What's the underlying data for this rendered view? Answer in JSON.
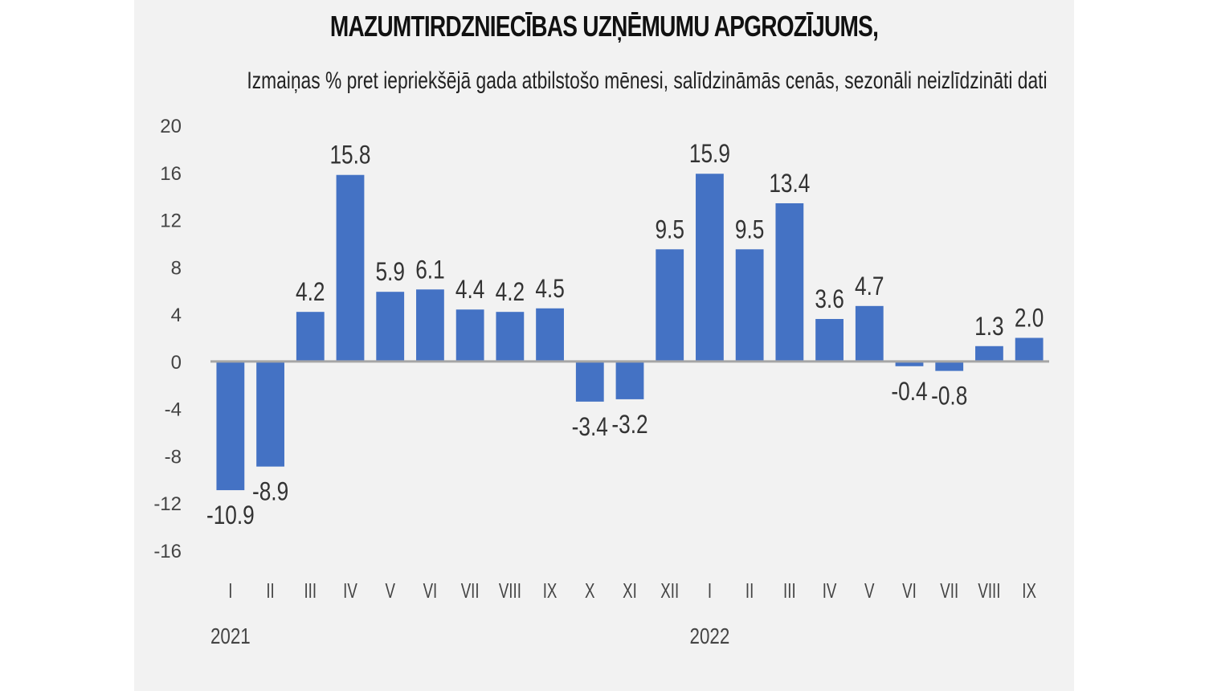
{
  "chart_data": {
    "type": "bar",
    "title": "MAZUMTIRDZNIECĪBAS UZŅĒMUMU APGROZĪJUMS,",
    "subtitle": "Izmaiņas % pret iepriekšējā gada atbilstošo mēnesi, salīdzināmās cenās, sezonāli neizlīdzināti dati",
    "categories": [
      "I",
      "II",
      "III",
      "IV",
      "V",
      "VI",
      "VII",
      "VIII",
      "IX",
      "X",
      "XI",
      "XII",
      "I",
      "II",
      "III",
      "IV",
      "V",
      "VI",
      "VII",
      "VIII",
      "IX"
    ],
    "values": [
      -10.9,
      -8.9,
      4.2,
      15.8,
      5.9,
      6.1,
      4.4,
      4.2,
      4.5,
      -3.4,
      -3.2,
      9.5,
      15.9,
      9.5,
      13.4,
      3.6,
      4.7,
      -0.4,
      -0.8,
      1.3,
      2.0
    ],
    "data_labels": [
      "-10.9",
      "-8.9",
      "4.2",
      "15.8",
      "5.9",
      "6.1",
      "4.4",
      "4.2",
      "4.5",
      "-3.4",
      "-3.2",
      "9.5",
      "15.9",
      "9.5",
      "13.4",
      "3.6",
      "4.7",
      "-0.4",
      "-0.8",
      "1.3",
      "2.0"
    ],
    "year_labels": [
      {
        "label": "2021",
        "category_index": 0
      },
      {
        "label": "2022",
        "category_index": 12
      }
    ],
    "yticks": [
      "20",
      "16",
      "12",
      "8",
      "4",
      "0",
      "-4",
      "-8",
      "-12",
      "-16"
    ],
    "ylim": [
      -16,
      20
    ],
    "xlabel": "",
    "ylabel": "",
    "grid": false,
    "bar_color": "#4472c4",
    "axis_color": "#a6a6a6"
  }
}
